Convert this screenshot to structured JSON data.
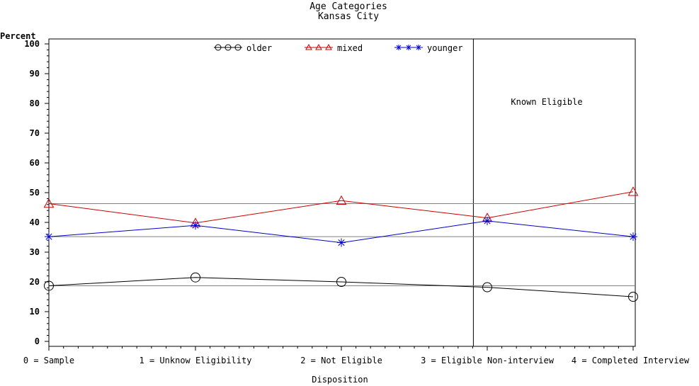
{
  "chart_data": {
    "type": "line",
    "title": "Age Categories",
    "subtitle": "Kansas City",
    "ylabel": "Percent",
    "xlabel": "Disposition",
    "ylim": [
      0,
      100
    ],
    "yticks": [
      0,
      10,
      20,
      30,
      40,
      50,
      60,
      70,
      80,
      90,
      100
    ],
    "x": [
      0,
      1,
      2,
      3,
      4
    ],
    "categories": [
      "0 = Sample",
      "1 = Unknow Eligibility",
      "2 = Not Eligible",
      "3 = Eligible Non-interview",
      "4 = Completed Interview"
    ],
    "series": [
      {
        "name": "older",
        "color": "#000000",
        "marker": "circle",
        "values": [
          18.7,
          21.5,
          20.0,
          18.2,
          15.0
        ]
      },
      {
        "name": "mixed",
        "color": "#cc0000",
        "marker": "triangle",
        "values": [
          46.3,
          39.8,
          47.3,
          41.5,
          50.3
        ]
      },
      {
        "name": "younger",
        "color": "#0000cc",
        "marker": "star",
        "values": [
          35.2,
          39.0,
          33.2,
          40.5,
          35.2
        ]
      }
    ],
    "reference_lines": [
      {
        "series": "older",
        "value": 18.7
      },
      {
        "series": "mixed",
        "value": 46.3
      },
      {
        "series": "younger",
        "value": 35.2
      }
    ],
    "divider_x": 2.9,
    "annotation": "Known Eligible",
    "legend_position": "top"
  }
}
